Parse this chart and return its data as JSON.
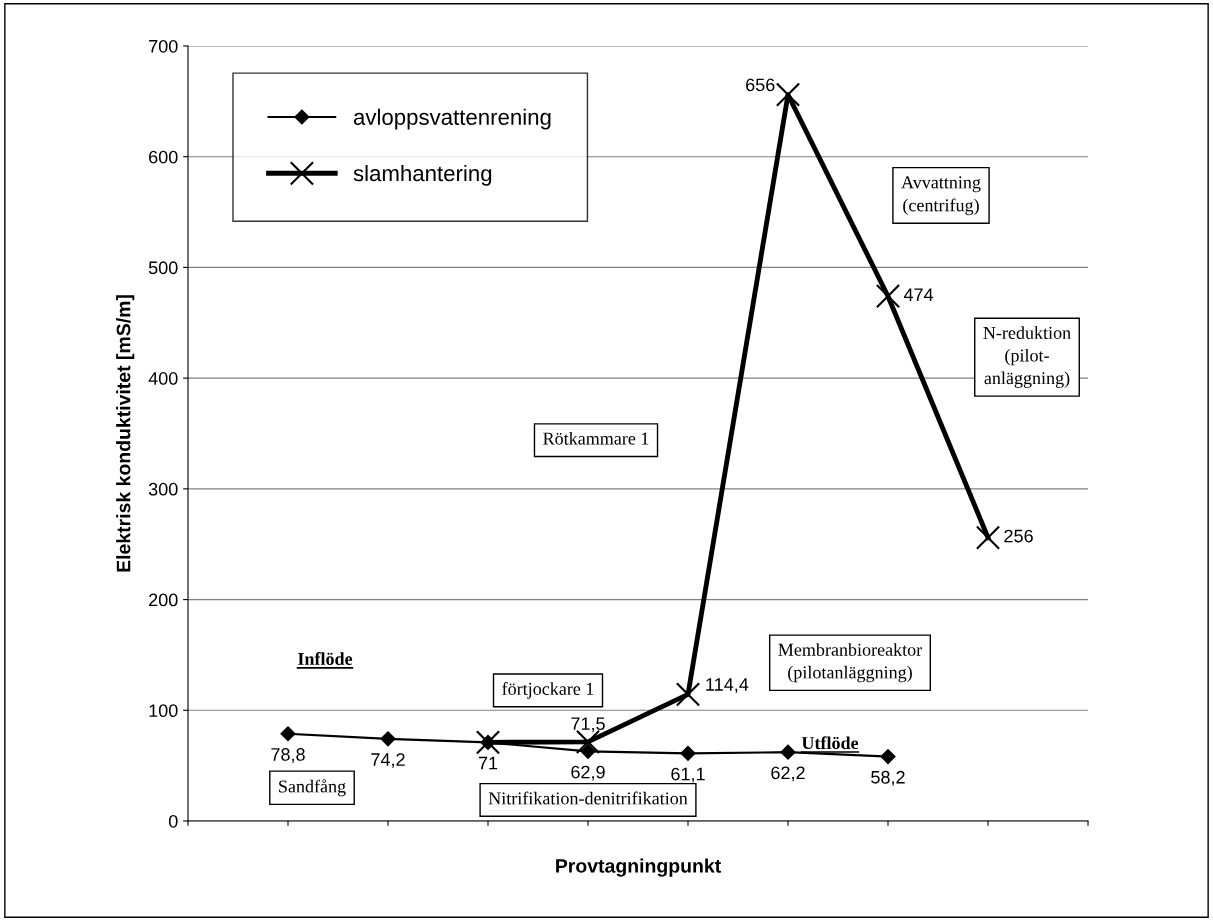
{
  "chart_data": {
    "type": "line",
    "xlabel": "Provtagningpunkt",
    "ylabel": "Elektrisk konduktivitet [mS/m]",
    "categories": [
      null,
      null,
      null,
      null,
      null,
      null,
      null,
      null
    ],
    "series": [
      {
        "name": "avloppsvattenrening",
        "color": "#000000",
        "marker": "diamond",
        "values": [
          78.8,
          74.2,
          71,
          62.9,
          61.1,
          62.2,
          58.2,
          null
        ],
        "value_labels": [
          "78,8",
          "74,2",
          "71",
          "62,9",
          "61,1",
          "62,2",
          "58,2",
          null
        ]
      },
      {
        "name": "slamhantering",
        "color": "#000000",
        "marker": "cross",
        "values": [
          null,
          null,
          71,
          71.5,
          114.4,
          656,
          474,
          256
        ],
        "value_labels": [
          null,
          null,
          null,
          "71,5",
          "114,4",
          "656",
          "474",
          "256"
        ]
      }
    ],
    "ylim": [
      0,
      700
    ],
    "yticks": [
      0,
      100,
      200,
      300,
      400,
      500,
      600,
      700
    ],
    "grid": "y",
    "legend": "top left",
    "line_style": "solid",
    "annotations": [
      "Inflöde",
      "Sandfång",
      "Nitrifikation-denitrifikation",
      "förtjockare 1",
      "Rötkammare 1",
      "Membranbioreaktor\n(pilotanläggning)",
      "Utflöde",
      "Avvattning\n(centrifug)",
      "N-reduktion\n(pilot-\nanläggning)"
    ]
  }
}
